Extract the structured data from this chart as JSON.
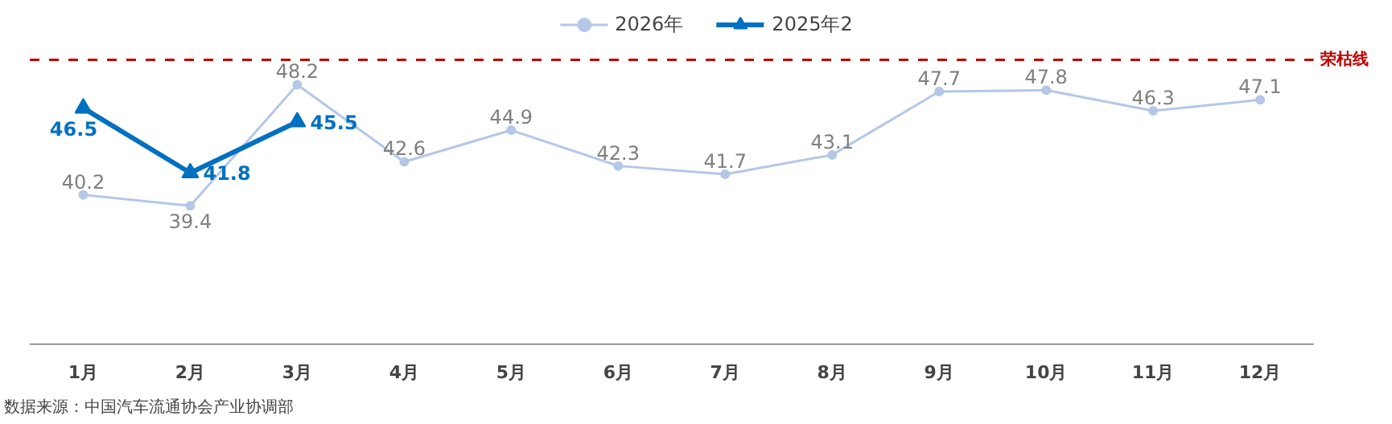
{
  "chart_data": {
    "type": "line",
    "categories": [
      "1月",
      "2月",
      "3月",
      "4月",
      "5月",
      "6月",
      "7月",
      "8月",
      "9月",
      "10月",
      "11月",
      "12月"
    ],
    "series": [
      {
        "name": "2026年",
        "color": "#b4c7e7",
        "marker": "circle",
        "values": [
          40.2,
          39.4,
          48.2,
          42.6,
          44.9,
          42.3,
          41.7,
          43.1,
          47.7,
          47.8,
          46.3,
          47.1
        ]
      },
      {
        "name": "2025年2",
        "color": "#0070c0",
        "marker": "triangle",
        "values": [
          46.5,
          41.8,
          45.5,
          null,
          null,
          null,
          null,
          null,
          null,
          null,
          null,
          null
        ]
      }
    ],
    "tick_labels": "x",
    "grid": false,
    "legend": "top",
    "data_labels": true,
    "ref_lines": [
      {
        "axis": "y",
        "value": 50,
        "label": "荣枯线",
        "color": "#c00000",
        "line_style": "dashed"
      }
    ],
    "annotations": [
      "数据来源：中国汽车流通协会产业协调部"
    ]
  }
}
